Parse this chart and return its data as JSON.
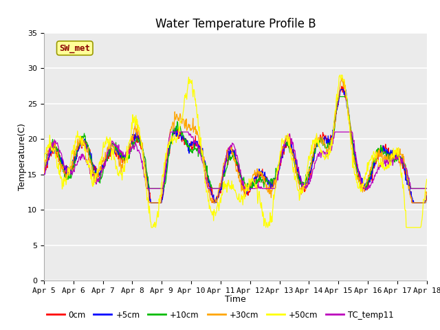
{
  "title": "Water Temperature Profile B",
  "xlabel": "Time",
  "ylabel": "Temperature(C)",
  "ylim": [
    0,
    35
  ],
  "yticks": [
    0,
    5,
    10,
    15,
    20,
    25,
    30,
    35
  ],
  "x_tick_labels": [
    "Apr 5",
    "Apr 6",
    "Apr 7",
    "Apr 8",
    "Apr 9",
    "Apr 10",
    "Apr 11",
    "Apr 12",
    "Apr 13",
    "Apr 14",
    "Apr 15",
    "Apr 16",
    "Apr 17",
    "Apr 18"
  ],
  "annotation_text": "SW_met",
  "annotation_color": "#8B0000",
  "annotation_bg": "#FFFF99",
  "colors": {
    "0cm": "#FF0000",
    "+5cm": "#0000FF",
    "+10cm": "#00BB00",
    "+30cm": "#FFA500",
    "+50cm": "#FFFF00",
    "TC_temp11": "#BB00BB"
  },
  "legend_labels": [
    "0cm",
    "+5cm",
    "+10cm",
    "+30cm",
    "+50cm",
    "TC_temp11"
  ],
  "plot_bg": "#EBEBEB",
  "grid_color": "#FFFFFF",
  "title_fontsize": 12,
  "label_fontsize": 9,
  "tick_fontsize": 8
}
